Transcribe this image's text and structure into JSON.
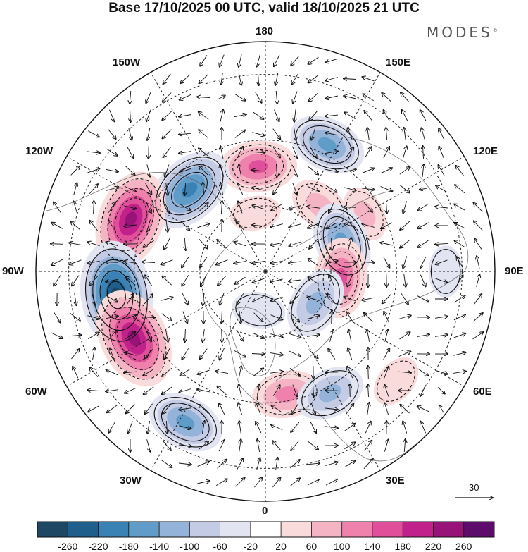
{
  "title": "Base 17/10/2025 00 UTC, valid 18/10/2025 21 UTC",
  "brand": "MODES",
  "brand_mark": "©",
  "longitude_labels": {
    "n": "180",
    "nw": "150W",
    "ne": "150E",
    "wnw": "120W",
    "ene": "120E",
    "w": "90W",
    "e": "90E",
    "wsw": "60W",
    "ese": "60E",
    "sw": "30W",
    "se": "30E",
    "s": "0"
  },
  "reference_vector": {
    "label": "30",
    "icon": "arrow-right-icon"
  },
  "colorbar": {
    "labels": [
      "-260",
      "-220",
      "-180",
      "-140",
      "-100",
      "-60",
      "-20",
      "20",
      "60",
      "100",
      "140",
      "180",
      "220",
      "260"
    ],
    "colors": [
      "#1d4762",
      "#1f5f8c",
      "#3b82b4",
      "#5f9dc8",
      "#94b3d9",
      "#c4cbe4",
      "#e2e4f1",
      "#ffffff",
      "#f9dbdc",
      "#f5b4c4",
      "#ee82ad",
      "#e0509a",
      "#c1218a",
      "#971378",
      "#5e0c6b"
    ]
  },
  "anomaly_centers": [
    {
      "lat": 58,
      "lon": -176,
      "value": 150
    },
    {
      "lat": 56,
      "lon": -137,
      "value": -210
    },
    {
      "lat": 47,
      "lon": 154,
      "value": -150
    },
    {
      "lat": 64,
      "lon": 140,
      "value": 90
    },
    {
      "lat": 55,
      "lon": 120,
      "value": 60
    },
    {
      "lat": 46,
      "lon": -111,
      "value": 240
    },
    {
      "lat": 65,
      "lon": 111,
      "value": -160
    },
    {
      "lat": 67,
      "lon": 85,
      "value": 160
    },
    {
      "lat": 72,
      "lon": 58,
      "value": -130
    },
    {
      "lat": 44,
      "lon": -81,
      "value": -280
    },
    {
      "lat": 45,
      "lon": -63,
      "value": 250
    },
    {
      "lat": 38,
      "lon": -28,
      "value": -150
    },
    {
      "lat": 52,
      "lon": 10,
      "value": 120
    },
    {
      "lat": 48,
      "lon": 28,
      "value": -120
    },
    {
      "lat": 38,
      "lon": 50,
      "value": 50
    },
    {
      "lat": 78,
      "lon": -10,
      "value": -50
    },
    {
      "lat": 72,
      "lon": -170,
      "value": 40
    },
    {
      "lat": 35,
      "lon": 90,
      "value": -40
    }
  ]
}
